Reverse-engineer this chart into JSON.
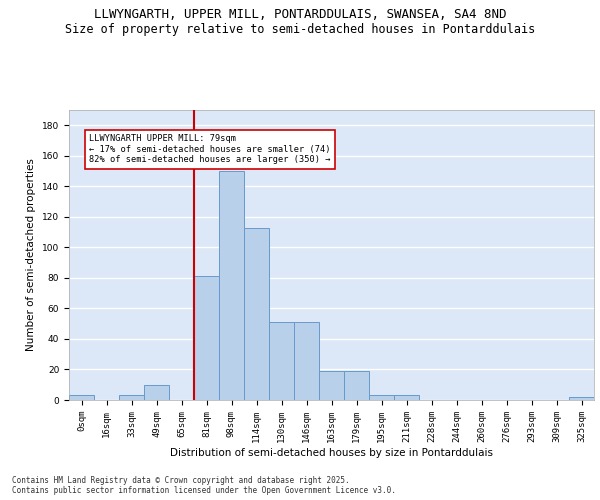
{
  "title1": "LLWYNGARTH, UPPER MILL, PONTARDDULAIS, SWANSEA, SA4 8ND",
  "title2": "Size of property relative to semi-detached houses in Pontarddulais",
  "xlabel": "Distribution of semi-detached houses by size in Pontarddulais",
  "ylabel": "Number of semi-detached properties",
  "categories": [
    "0sqm",
    "16sqm",
    "33sqm",
    "49sqm",
    "65sqm",
    "81sqm",
    "98sqm",
    "114sqm",
    "130sqm",
    "146sqm",
    "163sqm",
    "179sqm",
    "195sqm",
    "211sqm",
    "228sqm",
    "244sqm",
    "260sqm",
    "276sqm",
    "293sqm",
    "309sqm",
    "325sqm"
  ],
  "values": [
    3,
    0,
    3,
    10,
    0,
    81,
    150,
    113,
    51,
    51,
    19,
    19,
    3,
    3,
    0,
    0,
    0,
    0,
    0,
    0,
    2
  ],
  "bar_color": "#b8d0ea",
  "bar_edge_color": "#6699cc",
  "property_line_index": 5,
  "annotation_text": "LLWYNGARTH UPPER MILL: 79sqm\n← 17% of semi-detached houses are smaller (74)\n82% of semi-detached houses are larger (350) →",
  "annotation_box_color": "#ffffff",
  "annotation_box_edge": "#cc0000",
  "vline_color": "#cc0000",
  "ylim": [
    0,
    190
  ],
  "yticks": [
    0,
    20,
    40,
    60,
    80,
    100,
    120,
    140,
    160,
    180
  ],
  "background_color": "#dce8f8",
  "grid_color": "#ffffff",
  "footer": "Contains HM Land Registry data © Crown copyright and database right 2025.\nContains public sector information licensed under the Open Government Licence v3.0.",
  "title_fontsize": 9,
  "subtitle_fontsize": 8.5,
  "axis_label_fontsize": 7.5,
  "tick_fontsize": 6.5,
  "footer_fontsize": 5.5
}
